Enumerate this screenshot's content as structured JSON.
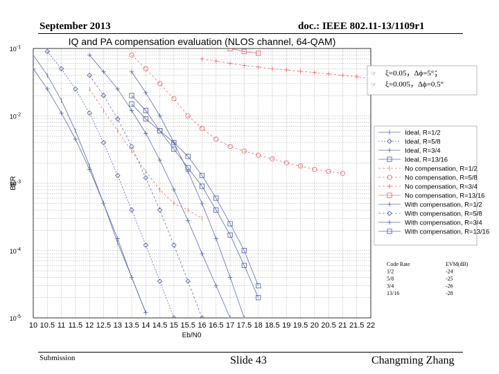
{
  "slide": {
    "header_left": "September 2013",
    "header_right": "doc.: IEEE 802.11-13/1109r1",
    "footer_left": "Submission",
    "footer_center": "Slide 43",
    "footer_right": "Changming Zhang"
  },
  "chart_data": {
    "type": "line",
    "title": "IQ and PA compensation evaluation (NLOS channel, 64-QAM)",
    "xlabel": "Eb/N0",
    "ylabel": "BER",
    "xlim": [
      10,
      22
    ],
    "x_ticks": [
      "10",
      "10.5",
      "11",
      "11.5",
      "12",
      "12.5",
      "13",
      "13.5",
      "14",
      "14.5",
      "15",
      "15.5",
      "16",
      "16.5",
      "17",
      "17.5",
      "18",
      "18.5",
      "19",
      "19.5",
      "20",
      "20.5",
      "21",
      "21.5",
      "22"
    ],
    "y_scale": "log",
    "ylim": [
      1e-05,
      0.1
    ],
    "y_ticks": [
      {
        "base": "10",
        "exp": "-1"
      },
      {
        "base": "10",
        "exp": "-2"
      },
      {
        "base": "10",
        "exp": "-3"
      },
      {
        "base": "10",
        "exp": "-4"
      },
      {
        "base": "10",
        "exp": "-5"
      }
    ],
    "grid": true,
    "legend_position": "right",
    "impairments": [
      {
        "text": "ξ=0.05，Δϕ=5°；"
      },
      {
        "text": "ξ=0.005，Δϕ=0.5°"
      }
    ],
    "series": [
      {
        "name": "Ideal, R=1/2",
        "color": "#5a6aa8",
        "dash": "",
        "marker": "bar",
        "x": [
          10.0,
          10.5,
          11.0,
          11.5,
          12.0,
          12.5,
          13.0,
          13.5,
          14.0
        ],
        "y": [
          0.08,
          0.04,
          0.017,
          0.006,
          0.0018,
          0.0005,
          0.00013,
          4e-05,
          1.2e-05
        ]
      },
      {
        "name": "Ideal, R=5/8",
        "color": "#5a6aa8",
        "dash": "2 2",
        "marker": "diamond",
        "x": [
          10.5,
          11.0,
          11.5,
          12.0,
          12.5,
          13.0,
          13.5,
          14.0,
          14.5,
          15.0
        ],
        "y": [
          0.09,
          0.05,
          0.025,
          0.011,
          0.004,
          0.0013,
          0.0004,
          0.00012,
          3.5e-05,
          1e-05
        ]
      },
      {
        "name": "Ideal, R=3/4",
        "color": "#5a6aa8",
        "dash": "",
        "marker": "plus",
        "x": [
          12.0,
          12.5,
          13.0,
          13.5,
          14.0,
          14.5,
          15.0,
          15.5,
          16.0,
          16.5,
          17.0,
          17.5
        ],
        "y": [
          0.08,
          0.045,
          0.025,
          0.012,
          0.0055,
          0.0022,
          0.0008,
          0.00028,
          9e-05,
          3e-05,
          1e-05,
          4e-06
        ]
      },
      {
        "name": "Ideal, R=13/16",
        "color": "#5a6aa8",
        "dash": "",
        "marker": "square",
        "x": [
          13.5,
          14.0,
          14.5,
          15.0,
          15.5,
          16.0,
          16.5,
          17.0,
          17.5,
          18.0
        ],
        "y": [
          0.02,
          0.012,
          0.006,
          0.0032,
          0.0017,
          0.0009,
          0.0004,
          0.00017,
          6e-05,
          2e-05
        ]
      },
      {
        "name": "No compensation, R=1/2",
        "color": "#e07070",
        "dash": "3 3",
        "marker": "bar",
        "x": [
          12.0,
          12.5,
          13.0,
          13.5,
          14.0,
          14.5,
          15.0,
          15.5,
          16.0
        ],
        "y": [
          0.025,
          0.012,
          0.006,
          0.003,
          0.0015,
          0.0008,
          0.0005,
          0.0004,
          0.0003
        ]
      },
      {
        "name": "No compensation, R=5/8",
        "color": "#e07070",
        "dash": "3 3",
        "marker": "circle",
        "x": [
          13.5,
          14.0,
          14.5,
          15.0,
          15.5,
          16.0,
          16.5,
          17.0,
          17.5,
          18.0,
          18.5,
          19.0,
          19.5,
          20.0,
          20.5,
          21.0
        ],
        "y": [
          0.08,
          0.05,
          0.03,
          0.018,
          0.01,
          0.0065,
          0.0045,
          0.0035,
          0.003,
          0.0026,
          0.0023,
          0.002,
          0.0018,
          0.0016,
          0.0015,
          0.0014
        ]
      },
      {
        "name": "No compensation, R=3/4",
        "color": "#e07070",
        "dash": "3 3",
        "marker": "plus",
        "x": [
          16.0,
          16.5,
          17.0,
          17.5,
          18.0,
          18.5,
          19.0,
          19.5,
          20.0,
          20.5,
          21.0,
          21.5,
          22.0
        ],
        "y": [
          0.07,
          0.065,
          0.06,
          0.056,
          0.053,
          0.05,
          0.048,
          0.046,
          0.044,
          0.042,
          0.04,
          0.038,
          0.036
        ]
      },
      {
        "name": "No compensation, R=13/16",
        "color": "#e07070",
        "dash": "",
        "marker": "square",
        "x": [
          17.0,
          17.5,
          18.0
        ],
        "y": [
          0.1,
          0.09,
          0.085
        ]
      },
      {
        "name": "With compensation, R=1/2",
        "color": "#5a6aa8",
        "dash": "",
        "marker": "plus",
        "x": [
          10.0,
          10.5,
          11.0,
          11.5,
          12.0,
          12.5,
          13.0,
          13.5,
          14.0
        ],
        "y": [
          0.05,
          0.025,
          0.011,
          0.0045,
          0.0016,
          0.0005,
          0.00015,
          4e-05,
          1.2e-05
        ]
      },
      {
        "name": "With compensation, R=5/8",
        "color": "#5a6aa8",
        "dash": "3 3",
        "marker": "diamond",
        "x": [
          12.0,
          12.5,
          13.0,
          13.5,
          14.0,
          14.5,
          15.0,
          15.5,
          16.0
        ],
        "y": [
          0.04,
          0.02,
          0.009,
          0.0035,
          0.0012,
          0.0004,
          0.00012,
          3.5e-05,
          1e-05
        ]
      },
      {
        "name": "With compensation, R=3/4",
        "color": "#5a6aa8",
        "dash": "",
        "marker": "plus",
        "x": [
          13.5,
          14.0,
          14.5,
          15.0,
          15.5,
          16.0,
          16.5,
          17.0,
          17.5
        ],
        "y": [
          0.045,
          0.022,
          0.01,
          0.004,
          0.0015,
          0.0005,
          0.00015,
          4e-05,
          1e-05
        ]
      },
      {
        "name": "With compensation, R=13/16",
        "color": "#5a6aa8",
        "dash": "",
        "marker": "square",
        "x": [
          13.5,
          14.0,
          14.5,
          15.0,
          15.5,
          16.0,
          16.5,
          17.0,
          17.5,
          18.0
        ],
        "y": [
          0.015,
          0.009,
          0.006,
          0.004,
          0.0025,
          0.0013,
          0.0006,
          0.00025,
          0.0001,
          3e-05
        ]
      }
    ],
    "evm_table": {
      "headers": [
        "Code Rate",
        "EVM(dB)"
      ],
      "rows": [
        [
          "1/2",
          "-24"
        ],
        [
          "5/8",
          "-25"
        ],
        [
          "3/4",
          "-26"
        ],
        [
          "13/16",
          "-28"
        ]
      ]
    }
  }
}
